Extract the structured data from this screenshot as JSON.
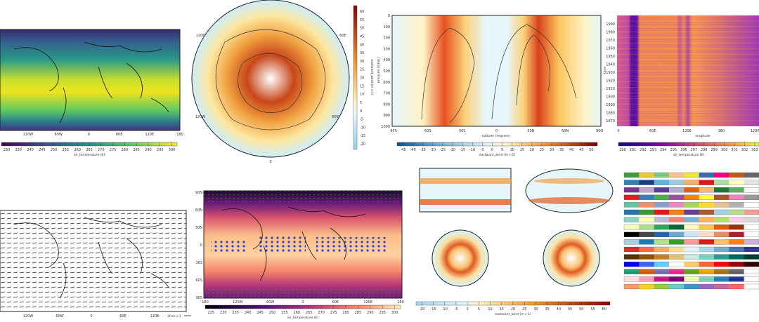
{
  "chart_data": [
    {
      "type": "heatmap",
      "panel": "global-map-air-temperature",
      "colormap": "viridis",
      "xticks": [
        "120W",
        "60W",
        "0",
        "60E",
        "120E",
        "180"
      ],
      "colorbar": {
        "ticks": [
          "230",
          "235",
          "240",
          "245",
          "250",
          "255",
          "260",
          "265",
          "270",
          "275",
          "280",
          "285",
          "290",
          "295",
          "300"
        ],
        "label": "air_temperature (K)"
      }
    },
    {
      "type": "heatmap",
      "panel": "polar-stereographic-eastward-wind",
      "colormap": "blue-white-orange-red",
      "lon_labels": [
        "120E",
        "60E",
        "120W",
        "60W",
        "0"
      ],
      "colorbar": {
        "orientation": "vertical",
        "ticks": [
          "60",
          "55",
          "50",
          "45",
          "40",
          "35",
          "30",
          "25",
          "20",
          "15",
          "10",
          "5",
          "0",
          "-5",
          "-10",
          "-15",
          "-20"
        ],
        "label": "eastward_wind (m s-1)"
      }
    },
    {
      "type": "heatmap",
      "panel": "zonal-mean-cross-section",
      "colormap": "blue-white-orange-red",
      "xticks": [
        "90S",
        "60S",
        "30S",
        "0",
        "30N",
        "60N",
        "90N"
      ],
      "yticks": [
        "0",
        "100",
        "200",
        "300",
        "400",
        "500",
        "600",
        "700",
        "800",
        "900",
        "1000"
      ],
      "xlabel": "latitude (degrees)",
      "ylabel": "pressure (mbar)",
      "colorbar": {
        "ticks": [
          "-45",
          "-40",
          "-35",
          "-30",
          "-25",
          "-20",
          "-15",
          "-10",
          "-5",
          "0",
          "5",
          "10",
          "15",
          "20",
          "25",
          "30",
          "35",
          "40",
          "45",
          "50"
        ],
        "label": "eastward_wind (m s-1)"
      }
    },
    {
      "type": "heatmap",
      "panel": "hovmoller-air-temperature",
      "colormap": "plasma",
      "xticks": [
        "0",
        "60E",
        "120E",
        "180",
        "120W"
      ],
      "yticks": [
        "1990",
        "1980",
        "1970",
        "1960",
        "1950",
        "1940",
        "1930",
        "1920",
        "1910",
        "1900",
        "1890",
        "1880",
        "1870"
      ],
      "xlabel": "longitude",
      "ylabel": "time",
      "colorbar": {
        "ticks": [
          "290",
          "291",
          "292",
          "293",
          "294",
          "295",
          "296",
          "297",
          "298",
          "299",
          "300",
          "301",
          "302",
          "303"
        ],
        "label": "air_temperature (K)"
      }
    },
    {
      "type": "other",
      "panel": "wind-vectors",
      "xticks": [
        "120W",
        "60W",
        "0",
        "60E",
        "120E"
      ],
      "key_label": "20 m s-1"
    },
    {
      "type": "heatmap",
      "panel": "global-map-stippled",
      "colormap": "magma",
      "xticks": [
        "180",
        "120W",
        "60W",
        "0",
        "60E",
        "120E",
        "180"
      ],
      "yticks": [
        "90N",
        "60N",
        "30N",
        "0",
        "30S",
        "60S",
        "90S"
      ],
      "colorbar": {
        "ticks": [
          "225",
          "230",
          "235",
          "240",
          "245",
          "250",
          "255",
          "260",
          "265",
          "270",
          "275",
          "280",
          "285",
          "290",
          "295",
          "300"
        ],
        "label": "air_temperature (K)"
      }
    },
    {
      "type": "heatmap",
      "panel": "multi-projection-wind",
      "colormap": "blue-white-orange-red",
      "colorbar": {
        "ticks": [
          "-20",
          "-15",
          "-10",
          "-5",
          "0",
          "5",
          "10",
          "15",
          "20",
          "25",
          "30",
          "35",
          "40",
          "45",
          "50",
          "55",
          "60"
        ],
        "label": "eastward_wind (m s-1)"
      }
    },
    {
      "type": "table",
      "panel": "colour-scales",
      "rows": [
        [
          "#3d9a3d",
          "#e8c53a",
          "#7fc97f",
          "#fdc086",
          "#f0e442",
          "#386cb0",
          "#f0027f",
          "#bf5b17",
          "#666666"
        ],
        [
          "#2b83ba",
          "#1a3c8f",
          "#5ab4e6",
          "#9ecae1",
          "#fdae61",
          "#d7191c",
          "#abdda4",
          "#ffffbf",
          "#e6e6e6"
        ],
        [
          "#7b3294",
          "#c2a5cf",
          "#5e3c99",
          "#b2abd2",
          "#e66101",
          "#fdb863",
          "#1b7837",
          "#5aae61",
          "#f7f7f7"
        ],
        [
          "#e41a1c",
          "#377eb8",
          "#4daf4a",
          "#984ea3",
          "#ff7f00",
          "#ffff33",
          "#a65628",
          "#f781bf",
          "#999999"
        ],
        [
          "#66c2a5",
          "#fc8d62",
          "#8da0cb",
          "#e78ac3",
          "#a6d854",
          "#ffd92f",
          "#e5c494",
          "#b3b3b3",
          "#ffffff"
        ],
        [
          "#1f78b4",
          "#33a02c",
          "#e31a1c",
          "#ff7f00",
          "#6a3d9a",
          "#b15928",
          "#a6cee3",
          "#b2df8a",
          "#fb9a99"
        ],
        [
          "#8dd3c7",
          "#ffffb3",
          "#bebada",
          "#fb8072",
          "#80b1d3",
          "#fdb462",
          "#b3de69",
          "#fccde5",
          "#d9d9d9"
        ],
        [
          "#f7fcb9",
          "#addd8e",
          "#31a354",
          "#006837",
          "#fff7bc",
          "#fec44f",
          "#d95f0e",
          "#993404",
          "#ffffff"
        ],
        [
          "#000000",
          "#444444",
          "#2166ac",
          "#67a9cf",
          "#d1e5f0",
          "#fddbc7",
          "#ef8a62",
          "#b2182b",
          "#ffffff"
        ],
        [
          "#a6cee3",
          "#1f78b4",
          "#b2df8a",
          "#33a02c",
          "#fb9a99",
          "#e31a1c",
          "#fdbf6f",
          "#ff7f00",
          "#cab2d6"
        ],
        [
          "#d73027",
          "#f46d43",
          "#fdae61",
          "#fee090",
          "#e0f3f8",
          "#abd9e9",
          "#74add1",
          "#4575b4",
          "#313695"
        ],
        [
          "#543005",
          "#8c510a",
          "#bf812d",
          "#dfc27d",
          "#c7eae5",
          "#80cdc1",
          "#35978f",
          "#01665e",
          "#003c30"
        ],
        [
          "#0000ff",
          "#3366ff",
          "#66ccff",
          "#ffffff",
          "#ffcc66",
          "#ff6633",
          "#ff0000",
          "#990000",
          "#330000"
        ],
        [
          "#1b9e77",
          "#d95f02",
          "#7570b3",
          "#e7298a",
          "#66a61e",
          "#e6ab02",
          "#a6761d",
          "#666666",
          "#ffffff"
        ],
        [
          "#fde0dd",
          "#fa9fb5",
          "#c51b8a",
          "#7a0177",
          "#edf8b1",
          "#7fcdbb",
          "#2c7fb8",
          "#253494",
          "#ffffff"
        ],
        [
          "#ff9966",
          "#ffcc33",
          "#99cc33",
          "#66cccc",
          "#3399cc",
          "#9966cc",
          "#cc6699",
          "#ff6666",
          "#ffffff"
        ]
      ]
    }
  ]
}
